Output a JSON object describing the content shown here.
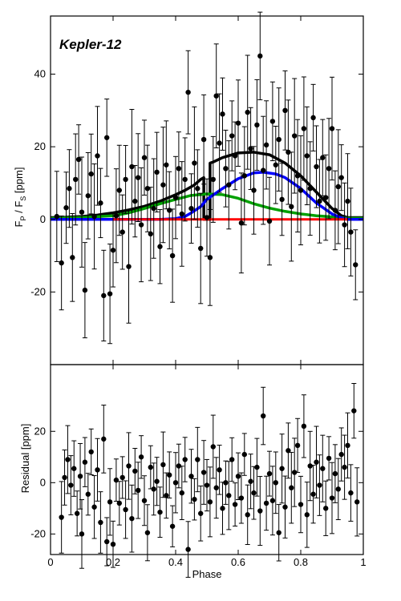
{
  "chart_data": {
    "type": "scatter",
    "title": "Kepler-12",
    "xlabel": "Phase",
    "xlim": [
      0,
      1
    ],
    "xticks": [
      "0",
      "0.2",
      "0.4",
      "0.6",
      "0.8",
      "1"
    ],
    "panels": [
      {
        "name": "flux",
        "ylabel_main": "F",
        "ylabel_sub1": "P",
        "ylabel_mid": " / F",
        "ylabel_sub2": "S",
        "ylabel_end": " [ppm]",
        "ylim": [
          -40,
          56
        ],
        "yticks": [
          -20,
          0,
          20,
          40
        ],
        "ytick_labels": [
          "-20",
          "0",
          "20",
          "40"
        ],
        "models": [
          {
            "color": "#000000",
            "x": [
              0,
              0.05,
              0.1,
              0.15,
              0.2,
              0.25,
              0.3,
              0.35,
              0.4,
              0.43,
              0.46,
              0.48,
              0.49,
              0.49,
              0.51,
              0.51,
              0.52,
              0.55,
              0.6,
              0.65,
              0.7,
              0.75,
              0.8,
              0.85,
              0.9,
              0.93,
              0.95,
              1
            ],
            "y": [
              0.5,
              0.6,
              0.8,
              1.2,
              1.8,
              2.6,
              3.6,
              5.0,
              6.8,
              8.0,
              9.5,
              11.0,
              11.5,
              0,
              0,
              15.5,
              15.8,
              17.0,
              18.3,
              18.5,
              17.8,
              15.5,
              12.0,
              7.5,
              3.0,
              1.0,
              0.5,
              0.5
            ]
          },
          {
            "color": "#00a000",
            "x": [
              0,
              0.1,
              0.2,
              0.25,
              0.3,
              0.35,
              0.4,
              0.45,
              0.5,
              0.55,
              0.6,
              0.65,
              0.7,
              0.75,
              0.8,
              0.85,
              0.9,
              0.95,
              1
            ],
            "y": [
              0.3,
              0.5,
              1.0,
              1.8,
              3.0,
              4.3,
              5.5,
              6.6,
              7.0,
              6.8,
              5.8,
              4.3,
              3.1,
              2.2,
              1.5,
              1.0,
              0.7,
              0.3,
              0.3
            ]
          },
          {
            "color": "#0000ff",
            "x": [
              0,
              0.35,
              0.4,
              0.43,
              0.45,
              0.48,
              0.5,
              0.55,
              0.6,
              0.65,
              0.68,
              0.72,
              0.75,
              0.8,
              0.85,
              0.9,
              0.93,
              0.95,
              1
            ],
            "y": [
              0,
              0,
              0.2,
              0.8,
              1.8,
              3.5,
              5.5,
              8.5,
              11.2,
              12.8,
              13.0,
              12.5,
              11.5,
              8.5,
              4.5,
              1.5,
              0.4,
              0,
              0
            ]
          },
          {
            "color": "#ff0000",
            "x": [
              0.2,
              0.95
            ],
            "y": [
              0,
              0
            ]
          }
        ],
        "points": [
          {
            "x": 0.02,
            "y": 0.8
          },
          {
            "x": 0.035,
            "y": -12.0
          },
          {
            "x": 0.05,
            "y": 3.2
          },
          {
            "x": 0.06,
            "y": 8.5
          },
          {
            "x": 0.07,
            "y": -10.5
          },
          {
            "x": 0.08,
            "y": 11.0
          },
          {
            "x": 0.09,
            "y": 16.5
          },
          {
            "x": 0.1,
            "y": 2.0
          },
          {
            "x": 0.11,
            "y": -19.5
          },
          {
            "x": 0.12,
            "y": 6.5
          },
          {
            "x": 0.13,
            "y": 12.5
          },
          {
            "x": 0.14,
            "y": 0.8
          },
          {
            "x": 0.15,
            "y": 17.5
          },
          {
            "x": 0.16,
            "y": 4.5
          },
          {
            "x": 0.17,
            "y": -21.0
          },
          {
            "x": 0.18,
            "y": 22.5
          },
          {
            "x": 0.19,
            "y": -20.5
          },
          {
            "x": 0.2,
            "y": -8.5
          },
          {
            "x": 0.21,
            "y": 1.0
          },
          {
            "x": 0.22,
            "y": 8.0
          },
          {
            "x": 0.23,
            "y": -3.5
          },
          {
            "x": 0.24,
            "y": 11.0
          },
          {
            "x": 0.25,
            "y": -13.0
          },
          {
            "x": 0.26,
            "y": 14.5
          },
          {
            "x": 0.27,
            "y": 5.0
          },
          {
            "x": 0.28,
            "y": 11.5
          },
          {
            "x": 0.29,
            "y": -1.5
          },
          {
            "x": 0.3,
            "y": 17.0
          },
          {
            "x": 0.31,
            "y": 8.5
          },
          {
            "x": 0.32,
            "y": -4.0
          },
          {
            "x": 0.33,
            "y": 3.0
          },
          {
            "x": 0.34,
            "y": 13.0
          },
          {
            "x": 0.35,
            "y": -7.5
          },
          {
            "x": 0.36,
            "y": 9.5
          },
          {
            "x": 0.37,
            "y": 15.0
          },
          {
            "x": 0.38,
            "y": 2.5
          },
          {
            "x": 0.39,
            "y": -10.0
          },
          {
            "x": 0.4,
            "y": 6.0
          },
          {
            "x": 0.41,
            "y": 14.0
          },
          {
            "x": 0.42,
            "y": 1.5
          },
          {
            "x": 0.43,
            "y": 11.0
          },
          {
            "x": 0.44,
            "y": 35.0
          },
          {
            "x": 0.45,
            "y": 3.0
          },
          {
            "x": 0.46,
            "y": 15.5
          },
          {
            "x": 0.47,
            "y": 8.5
          },
          {
            "x": 0.48,
            "y": -8.0
          },
          {
            "x": 0.49,
            "y": 22.0
          },
          {
            "x": 0.5,
            "y": 0.5
          },
          {
            "x": 0.51,
            "y": -10.5
          },
          {
            "x": 0.52,
            "y": 11.0
          },
          {
            "x": 0.53,
            "y": 34.0
          },
          {
            "x": 0.54,
            "y": 21.0
          },
          {
            "x": 0.55,
            "y": 29.0
          },
          {
            "x": 0.56,
            "y": 14.0
          },
          {
            "x": 0.57,
            "y": 9.5
          },
          {
            "x": 0.58,
            "y": 23.0
          },
          {
            "x": 0.59,
            "y": 17.5
          },
          {
            "x": 0.6,
            "y": 26.5
          },
          {
            "x": 0.61,
            "y": -1.0
          },
          {
            "x": 0.62,
            "y": 12.0
          },
          {
            "x": 0.63,
            "y": 29.5
          },
          {
            "x": 0.64,
            "y": 19.5
          },
          {
            "x": 0.65,
            "y": 8.0
          },
          {
            "x": 0.66,
            "y": 26.0
          },
          {
            "x": 0.67,
            "y": 45.0
          },
          {
            "x": 0.68,
            "y": 13.5
          },
          {
            "x": 0.69,
            "y": 20.5
          },
          {
            "x": 0.7,
            "y": -0.5
          },
          {
            "x": 0.71,
            "y": 27.0
          },
          {
            "x": 0.72,
            "y": 15.0
          },
          {
            "x": 0.73,
            "y": 22.0
          },
          {
            "x": 0.74,
            "y": 5.5
          },
          {
            "x": 0.75,
            "y": 30.0
          },
          {
            "x": 0.76,
            "y": 18.5
          },
          {
            "x": 0.77,
            "y": 3.5
          },
          {
            "x": 0.78,
            "y": 23.0
          },
          {
            "x": 0.79,
            "y": 12.0
          },
          {
            "x": 0.8,
            "y": 8.0
          },
          {
            "x": 0.81,
            "y": 25.0
          },
          {
            "x": 0.82,
            "y": 17.5
          },
          {
            "x": 0.83,
            "y": 8.5
          },
          {
            "x": 0.84,
            "y": 28.0
          },
          {
            "x": 0.85,
            "y": 14.5
          },
          {
            "x": 0.86,
            "y": 5.0
          },
          {
            "x": 0.87,
            "y": 17.0
          },
          {
            "x": 0.88,
            "y": 6.0
          },
          {
            "x": 0.89,
            "y": 14.0
          },
          {
            "x": 0.9,
            "y": 25.0
          },
          {
            "x": 0.91,
            "y": 2.5
          },
          {
            "x": 0.92,
            "y": 9.0
          },
          {
            "x": 0.93,
            "y": 11.5
          },
          {
            "x": 0.94,
            "y": -1.5
          },
          {
            "x": 0.95,
            "y": 5.0
          },
          {
            "x": 0.96,
            "y": -3.5
          },
          {
            "x": 0.975,
            "y": -12.5
          }
        ]
      },
      {
        "name": "residual",
        "ylabel": "Residual [ppm]",
        "ylim": [
          -28,
          46
        ],
        "yticks": [
          -20,
          0,
          20
        ],
        "ytick_labels": [
          "-20",
          "0",
          "20"
        ],
        "points": [
          {
            "x": 0.035,
            "y": -13.5
          },
          {
            "x": 0.045,
            "y": 2.0
          },
          {
            "x": 0.055,
            "y": 9.0
          },
          {
            "x": 0.065,
            "y": -1.0
          },
          {
            "x": 0.075,
            "y": 5.5
          },
          {
            "x": 0.085,
            "y": -12.0
          },
          {
            "x": 0.095,
            "y": 2.5
          },
          {
            "x": 0.1,
            "y": -20.0
          },
          {
            "x": 0.11,
            "y": 8.0
          },
          {
            "x": 0.12,
            "y": -4.5
          },
          {
            "x": 0.13,
            "y": 12.0
          },
          {
            "x": 0.14,
            "y": -9.5
          },
          {
            "x": 0.15,
            "y": 5.0
          },
          {
            "x": 0.16,
            "y": -15.5
          },
          {
            "x": 0.17,
            "y": 17.0
          },
          {
            "x": 0.18,
            "y": -23.0
          },
          {
            "x": 0.19,
            "y": -7.5
          },
          {
            "x": 0.2,
            "y": -24.0
          },
          {
            "x": 0.21,
            "y": 1.0
          },
          {
            "x": 0.22,
            "y": -8.0
          },
          {
            "x": 0.23,
            "y": 2.0
          },
          {
            "x": 0.24,
            "y": -10.5
          },
          {
            "x": 0.25,
            "y": 6.5
          },
          {
            "x": 0.26,
            "y": -14.0
          },
          {
            "x": 0.27,
            "y": 4.5
          },
          {
            "x": 0.28,
            "y": -3.0
          },
          {
            "x": 0.29,
            "y": 10.0
          },
          {
            "x": 0.3,
            "y": -7.0
          },
          {
            "x": 0.31,
            "y": -19.5
          },
          {
            "x": 0.32,
            "y": 6.0
          },
          {
            "x": 0.33,
            "y": -2.5
          },
          {
            "x": 0.34,
            "y": 0.5
          },
          {
            "x": 0.35,
            "y": -11.5
          },
          {
            "x": 0.36,
            "y": 7.0
          },
          {
            "x": 0.37,
            "y": -5.0
          },
          {
            "x": 0.38,
            "y": 3.0
          },
          {
            "x": 0.39,
            "y": -17.0
          },
          {
            "x": 0.4,
            "y": 0.0
          },
          {
            "x": 0.41,
            "y": 6.5
          },
          {
            "x": 0.42,
            "y": -4.0
          },
          {
            "x": 0.43,
            "y": 9.0
          },
          {
            "x": 0.44,
            "y": -26.0
          },
          {
            "x": 0.45,
            "y": 2.5
          },
          {
            "x": 0.46,
            "y": -6.5
          },
          {
            "x": 0.47,
            "y": 9.0
          },
          {
            "x": 0.48,
            "y": -12.0
          },
          {
            "x": 0.49,
            "y": 4.0
          },
          {
            "x": 0.5,
            "y": -1.0
          },
          {
            "x": 0.51,
            "y": -7.5
          },
          {
            "x": 0.52,
            "y": 14.0
          },
          {
            "x": 0.53,
            "y": -2.0
          },
          {
            "x": 0.54,
            "y": 5.0
          },
          {
            "x": 0.55,
            "y": -10.0
          },
          {
            "x": 0.56,
            "y": 0.0
          },
          {
            "x": 0.57,
            "y": -5.0
          },
          {
            "x": 0.58,
            "y": 9.0
          },
          {
            "x": 0.59,
            "y": -8.5
          },
          {
            "x": 0.6,
            "y": 2.5
          },
          {
            "x": 0.61,
            "y": -6.0
          },
          {
            "x": 0.62,
            "y": 11.0
          },
          {
            "x": 0.63,
            "y": -12.5
          },
          {
            "x": 0.64,
            "y": 0.5
          },
          {
            "x": 0.65,
            "y": -4.0
          },
          {
            "x": 0.66,
            "y": 6.0
          },
          {
            "x": 0.67,
            "y": -11.0
          },
          {
            "x": 0.68,
            "y": 26.0
          },
          {
            "x": 0.69,
            "y": -8.0
          },
          {
            "x": 0.7,
            "y": 3.5
          },
          {
            "x": 0.71,
            "y": -7.0
          },
          {
            "x": 0.72,
            "y": 0.0
          },
          {
            "x": 0.73,
            "y": -19.5
          },
          {
            "x": 0.74,
            "y": 5.5
          },
          {
            "x": 0.75,
            "y": -9.5
          },
          {
            "x": 0.76,
            "y": 12.5
          },
          {
            "x": 0.77,
            "y": -2.0
          },
          {
            "x": 0.78,
            "y": 4.0
          },
          {
            "x": 0.79,
            "y": 14.5
          },
          {
            "x": 0.8,
            "y": -8.5
          },
          {
            "x": 0.81,
            "y": 22.0
          },
          {
            "x": 0.82,
            "y": -12.5
          },
          {
            "x": 0.83,
            "y": 6.5
          },
          {
            "x": 0.84,
            "y": -4.5
          },
          {
            "x": 0.85,
            "y": 8.0
          },
          {
            "x": 0.86,
            "y": -1.0
          },
          {
            "x": 0.87,
            "y": 5.5
          },
          {
            "x": 0.88,
            "y": -10.0
          },
          {
            "x": 0.89,
            "y": 9.5
          },
          {
            "x": 0.9,
            "y": -6.0
          },
          {
            "x": 0.91,
            "y": 3.5
          },
          {
            "x": 0.92,
            "y": -2.5
          },
          {
            "x": 0.93,
            "y": 11.0
          },
          {
            "x": 0.94,
            "y": 6.0
          },
          {
            "x": 0.95,
            "y": 14.5
          },
          {
            "x": 0.96,
            "y": -4.0
          },
          {
            "x": 0.97,
            "y": 28.0
          },
          {
            "x": 0.98,
            "y": -7.5
          }
        ]
      }
    ],
    "grid": false,
    "legend": "none"
  }
}
